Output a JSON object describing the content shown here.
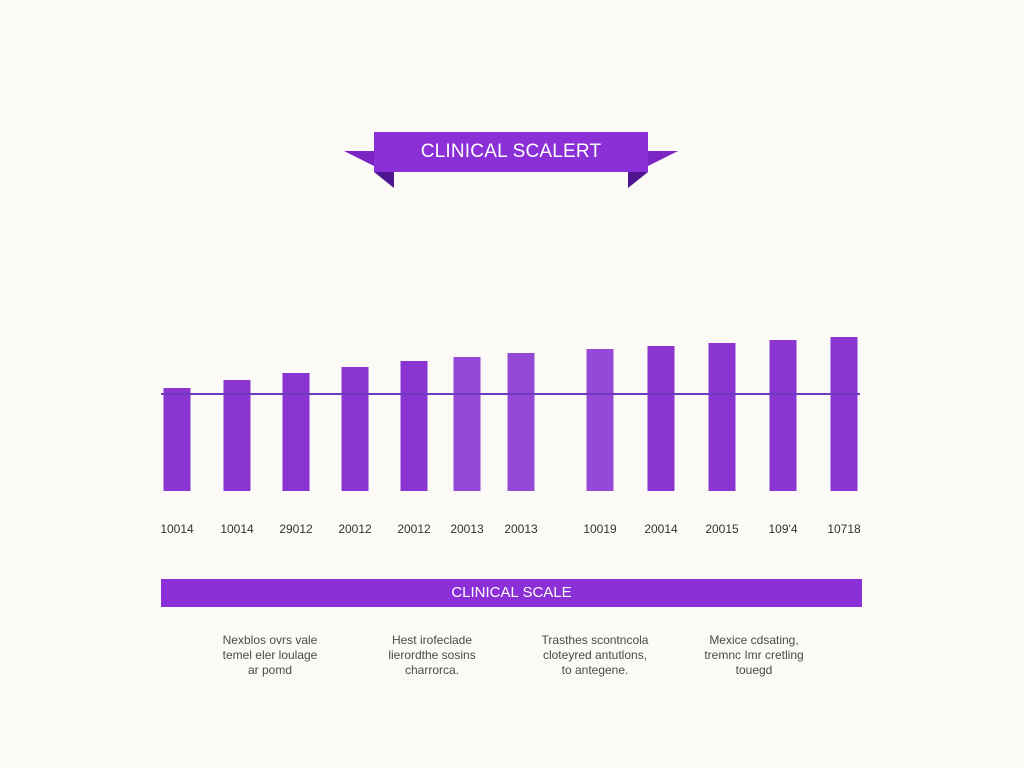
{
  "banner": {
    "title": "CLINICAL SCALERT"
  },
  "scale_bar": {
    "label": "CLINICAL SCALE"
  },
  "notes": [
    {
      "lines": [
        "Nexblos ovrs vale",
        "temel eler loulage",
        "ar pomd"
      ]
    },
    {
      "lines": [
        "Hest irofeclade",
        "lierordthe sosins",
        "charrorca."
      ]
    },
    {
      "lines": [
        "Trasthes scontncola",
        "cloteyred antutlons,",
        "to antegene."
      ]
    },
    {
      "lines": [
        "Mexice cdsating,",
        "tremnc Imr cretling",
        "touegd"
      ]
    }
  ],
  "colors": {
    "accent": "#8b2fd6",
    "accent_dark": "#6a1fb0",
    "bar_fill": "#8a34d1",
    "reference_line": "#6d3bbf"
  },
  "chart_data": {
    "type": "bar",
    "categories": [
      "10014",
      "10014",
      "29012",
      "20012",
      "20012",
      "20013",
      "20013",
      "10019",
      "20014",
      "20015",
      "109'4",
      "10718"
    ],
    "values": [
      103,
      111,
      118,
      124,
      130,
      134,
      138,
      142,
      145,
      148,
      151,
      154
    ],
    "reference_line": 97,
    "ylim": [
      0,
      160
    ],
    "title": "",
    "xlabel": "",
    "ylabel": "",
    "grid": false,
    "legend": "none"
  }
}
